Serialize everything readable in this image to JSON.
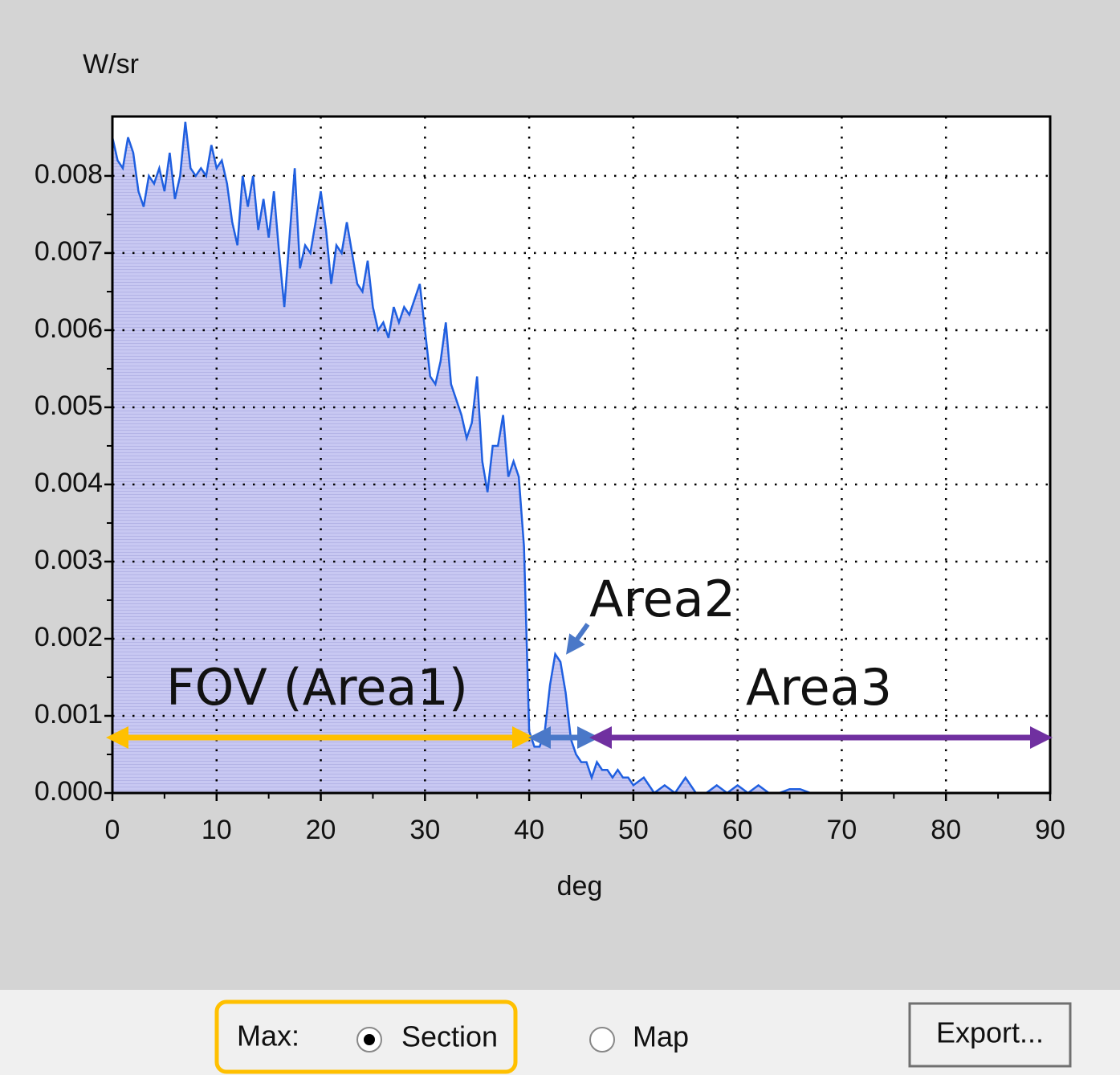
{
  "chart_data": {
    "type": "line",
    "y_label": "W/sr",
    "x_label": "deg",
    "fill": true,
    "color": "#1f5fe0",
    "fill_color": "#c4c4f0",
    "grid": true,
    "xlim": [
      0,
      90
    ],
    "xticks": [
      0,
      10,
      20,
      30,
      40,
      50,
      60,
      70,
      80,
      90
    ],
    "ylim": [
      0,
      0.00877
    ],
    "yticks": [
      {
        "value": 0,
        "label": "0.000"
      },
      0.001,
      0.002,
      0.003,
      0.004,
      0.005,
      0.006,
      0.007,
      0.008
    ],
    "x": [
      0,
      0.5,
      1,
      1.5,
      2,
      2.5,
      3,
      3.5,
      4,
      4.5,
      5,
      5.5,
      6,
      6.5,
      7,
      7.5,
      8,
      8.5,
      9,
      9.5,
      10,
      10.5,
      11,
      11.5,
      12,
      12.5,
      13,
      13.5,
      14,
      14.5,
      15,
      15.5,
      16,
      16.5,
      17,
      17.5,
      18,
      18.5,
      19,
      19.5,
      20,
      20.5,
      21,
      21.5,
      22,
      22.5,
      23,
      23.5,
      24,
      24.5,
      25,
      25.5,
      26,
      26.5,
      27,
      27.5,
      28,
      28.5,
      29,
      29.5,
      30,
      30.5,
      31,
      31.5,
      32,
      32.5,
      33,
      33.5,
      34,
      34.5,
      35,
      35.5,
      36,
      36.5,
      37,
      37.5,
      38,
      38.5,
      39,
      39.5,
      40,
      40.5,
      41,
      41.5,
      42,
      42.5,
      43,
      43.5,
      44,
      44.5,
      45,
      45.5,
      46,
      46.5,
      47,
      47.5,
      48,
      48.5,
      49,
      49.5,
      50,
      51,
      52,
      53,
      54,
      55,
      56,
      57,
      58,
      59,
      60,
      61,
      62,
      63,
      64,
      65,
      66,
      67
    ],
    "values": [
      0.0085,
      0.0082,
      0.0081,
      0.0085,
      0.0083,
      0.0078,
      0.0076,
      0.008,
      0.0079,
      0.0081,
      0.0078,
      0.0083,
      0.0077,
      0.008,
      0.0087,
      0.0081,
      0.008,
      0.0081,
      0.008,
      0.0084,
      0.0081,
      0.0082,
      0.0079,
      0.0074,
      0.0071,
      0.008,
      0.0076,
      0.008,
      0.0073,
      0.0077,
      0.0072,
      0.0078,
      0.007,
      0.0063,
      0.0072,
      0.0081,
      0.0068,
      0.0071,
      0.007,
      0.0074,
      0.0078,
      0.0073,
      0.0066,
      0.0071,
      0.007,
      0.0074,
      0.007,
      0.0066,
      0.0065,
      0.0069,
      0.0063,
      0.006,
      0.0061,
      0.0059,
      0.0063,
      0.0061,
      0.0063,
      0.0062,
      0.0064,
      0.0066,
      0.006,
      0.0054,
      0.0053,
      0.0056,
      0.0061,
      0.0053,
      0.0051,
      0.0049,
      0.0046,
      0.0048,
      0.0054,
      0.0043,
      0.0039,
      0.0045,
      0.0045,
      0.0049,
      0.0041,
      0.0043,
      0.0041,
      0.0032,
      0.0008,
      0.0006,
      0.0006,
      0.0008,
      0.0014,
      0.0018,
      0.0017,
      0.0013,
      0.0007,
      0.0005,
      0.0004,
      0.0004,
      0.0002,
      0.0004,
      0.0003,
      0.0003,
      0.0002,
      0.0003,
      0.0002,
      0.0002,
      0.0001,
      0.0002,
      0,
      0.0001,
      0,
      0.0002,
      0,
      0,
      0.0001,
      0,
      0.0001,
      0,
      0.0001,
      0,
      0,
      5e-05,
      5e-05,
      0
    ],
    "annotations": [
      "FOV (Area1)",
      "Area2",
      "Area3"
    ]
  },
  "controls": {
    "group_label": "Max:",
    "options": [
      "Section",
      "Map"
    ],
    "selected": 0,
    "button": "Export..."
  }
}
